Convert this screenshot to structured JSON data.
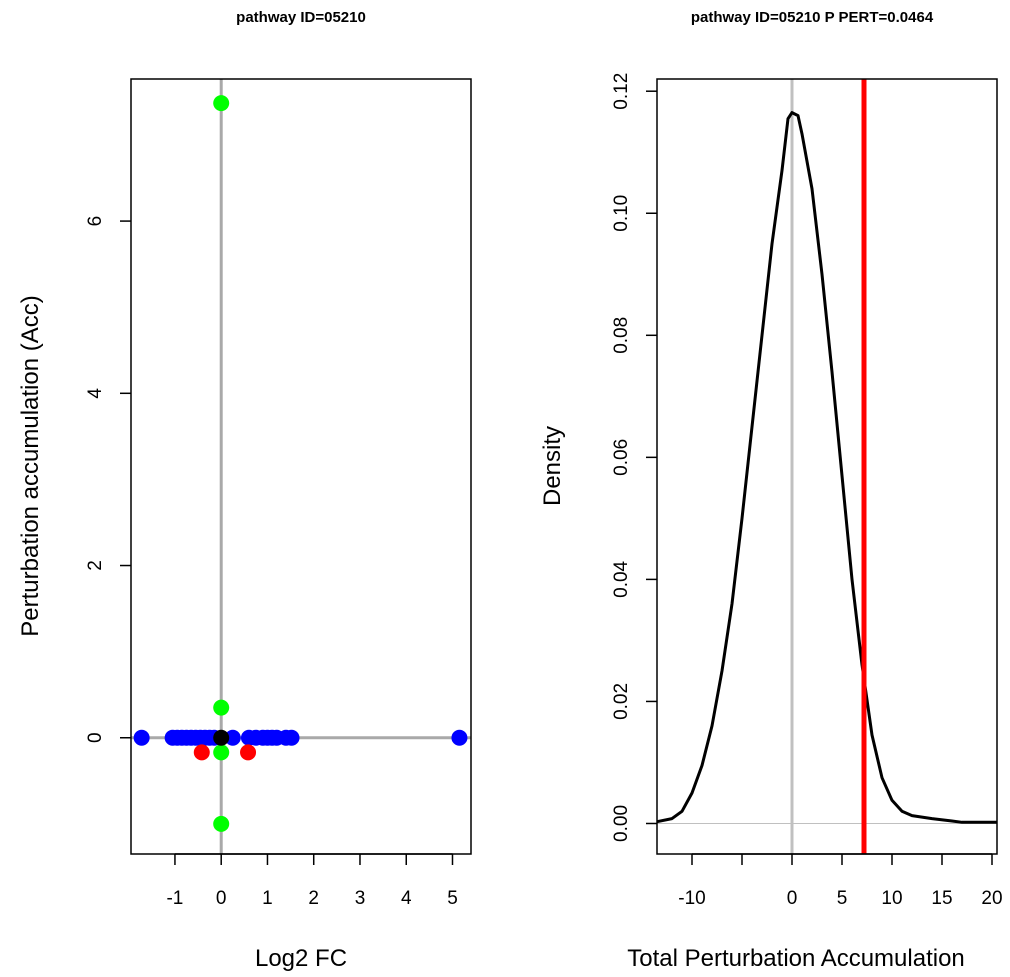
{
  "chart_data": [
    {
      "type": "scatter",
      "title": "pathway ID=05210",
      "xlabel": "Log2 FC",
      "ylabel": "Perturbation accumulation (Acc)",
      "xlim": [
        -1.95,
        5.4
      ],
      "ylim": [
        -1.35,
        7.65
      ],
      "xticks": [
        "-1",
        "0",
        "1",
        "2",
        "3",
        "4",
        "5"
      ],
      "yticks": [
        "0",
        "2",
        "4",
        "6"
      ],
      "reference_lines": {
        "h": 0,
        "v": 0,
        "color": "#a9a9a9"
      },
      "colors": {
        "blue": "#0000ff",
        "red": "#ff0000",
        "green": "#00ff00",
        "black": "#000000"
      },
      "points": [
        {
          "x": -1.72,
          "y": 0,
          "color": "blue"
        },
        {
          "x": -1.05,
          "y": 0,
          "color": "blue"
        },
        {
          "x": -0.95,
          "y": 0,
          "color": "blue"
        },
        {
          "x": -0.85,
          "y": 0,
          "color": "blue"
        },
        {
          "x": -0.75,
          "y": 0,
          "color": "blue"
        },
        {
          "x": -0.65,
          "y": 0,
          "color": "blue"
        },
        {
          "x": -0.55,
          "y": 0,
          "color": "blue"
        },
        {
          "x": -0.45,
          "y": 0,
          "color": "blue"
        },
        {
          "x": -0.35,
          "y": 0,
          "color": "blue"
        },
        {
          "x": -0.25,
          "y": 0,
          "color": "blue"
        },
        {
          "x": -0.15,
          "y": 0,
          "color": "blue"
        },
        {
          "x": 0.25,
          "y": 0,
          "color": "blue"
        },
        {
          "x": 0.6,
          "y": 0,
          "color": "blue"
        },
        {
          "x": 0.75,
          "y": 0,
          "color": "blue"
        },
        {
          "x": 0.9,
          "y": 0,
          "color": "blue"
        },
        {
          "x": 1.0,
          "y": 0,
          "color": "blue"
        },
        {
          "x": 1.1,
          "y": 0,
          "color": "blue"
        },
        {
          "x": 1.2,
          "y": 0,
          "color": "blue"
        },
        {
          "x": 1.4,
          "y": 0,
          "color": "blue"
        },
        {
          "x": 1.52,
          "y": 0,
          "color": "blue"
        },
        {
          "x": 5.15,
          "y": 0,
          "color": "blue"
        },
        {
          "x": -0.42,
          "y": -0.17,
          "color": "red"
        },
        {
          "x": 0.58,
          "y": -0.17,
          "color": "red"
        },
        {
          "x": 0,
          "y": 7.37,
          "color": "green"
        },
        {
          "x": 0,
          "y": 0.35,
          "color": "green"
        },
        {
          "x": 0,
          "y": -0.17,
          "color": "green"
        },
        {
          "x": 0,
          "y": -1.0,
          "color": "green"
        },
        {
          "x": 0,
          "y": 0,
          "color": "black"
        }
      ]
    },
    {
      "type": "line",
      "title": "pathway ID=05210  P PERT=0.0464",
      "xlabel": "Total Perturbation Accumulation",
      "ylabel": "Density",
      "xlim": [
        -13.5,
        20.5
      ],
      "ylim": [
        -0.005,
        0.122
      ],
      "xticks": [
        "-10",
        "0",
        "5",
        "10",
        "15",
        "20"
      ],
      "minor_xticks": [
        -5
      ],
      "yticks": [
        "0.00",
        "0.02",
        "0.04",
        "0.06",
        "0.08",
        "0.10",
        "0.12"
      ],
      "series": [
        {
          "color": "#000000",
          "x": [
            -13.5,
            -12,
            -11,
            -10,
            -9,
            -8,
            -7,
            -6,
            -5,
            -4,
            -3,
            -2,
            -1,
            -0.4,
            0,
            0.6,
            1,
            2,
            3,
            4,
            5,
            6,
            7,
            8,
            9,
            10,
            11,
            12,
            14,
            16,
            17,
            18,
            19,
            20.5
          ],
          "y": [
            0.0003,
            0.0008,
            0.002,
            0.005,
            0.0095,
            0.016,
            0.025,
            0.036,
            0.05,
            0.065,
            0.08,
            0.095,
            0.107,
            0.1155,
            0.1165,
            0.116,
            0.113,
            0.104,
            0.09,
            0.074,
            0.057,
            0.04,
            0.026,
            0.0145,
            0.0075,
            0.0038,
            0.002,
            0.0013,
            0.0008,
            0.0004,
            0.0002,
            0.0002,
            0.0002,
            0.0002
          ]
        }
      ],
      "observed_line": {
        "x": 7.2,
        "color": "#ff0000"
      },
      "zero_line": {
        "x": 0,
        "color": "#c0c0c0"
      },
      "baseline": {
        "y": 0,
        "color": "#c0c0c0"
      }
    }
  ]
}
